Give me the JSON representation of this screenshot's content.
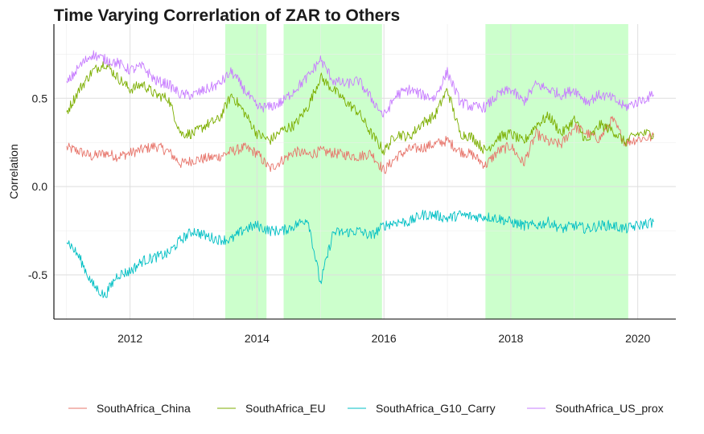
{
  "chart_data": {
    "type": "line",
    "title": "Time Varying Correrlation of ZAR to Others",
    "xlabel": "",
    "ylabel": "Correlation",
    "xlim": [
      2010.8,
      2020.6
    ],
    "ylim": [
      -0.75,
      0.92
    ],
    "x_ticks": [
      2012,
      2014,
      2016,
      2018,
      2020
    ],
    "x_tick_labels": [
      "2012",
      "2014",
      "2016",
      "2018",
      "2020"
    ],
    "y_ticks": [
      -0.5,
      0.0,
      0.5
    ],
    "y_tick_labels": [
      "-0.5",
      "0.0",
      "0.5"
    ],
    "grid": true,
    "legend_position": "bottom",
    "shaded_periods": [
      [
        2013.5,
        2014.15
      ],
      [
        2014.42,
        2015.97
      ],
      [
        2017.6,
        2019.85
      ]
    ],
    "shade_color": "#ccffcc",
    "series": [
      {
        "name": "SouthAfrica_China",
        "color": "#e7756b",
        "x": [
          2011.0,
          2011.2,
          2011.4,
          2011.6,
          2011.8,
          2012.0,
          2012.2,
          2012.4,
          2012.6,
          2012.8,
          2013.0,
          2013.2,
          2013.4,
          2013.6,
          2013.8,
          2014.0,
          2014.2,
          2014.4,
          2014.6,
          2014.8,
          2015.0,
          2015.2,
          2015.4,
          2015.6,
          2015.8,
          2016.0,
          2016.2,
          2016.4,
          2016.6,
          2016.8,
          2017.0,
          2017.2,
          2017.4,
          2017.6,
          2017.8,
          2018.0,
          2018.2,
          2018.4,
          2018.6,
          2018.8,
          2019.0,
          2019.2,
          2019.4,
          2019.6,
          2019.8,
          2020.0,
          2020.25
        ],
        "values": [
          0.22,
          0.2,
          0.17,
          0.19,
          0.17,
          0.19,
          0.21,
          0.23,
          0.2,
          0.13,
          0.15,
          0.16,
          0.17,
          0.2,
          0.22,
          0.19,
          0.1,
          0.15,
          0.2,
          0.18,
          0.2,
          0.19,
          0.18,
          0.17,
          0.19,
          0.09,
          0.17,
          0.21,
          0.22,
          0.24,
          0.26,
          0.2,
          0.18,
          0.12,
          0.2,
          0.23,
          0.13,
          0.3,
          0.25,
          0.24,
          0.34,
          0.3,
          0.27,
          0.38,
          0.25,
          0.27,
          0.28
        ]
      },
      {
        "name": "SouthAfrica_EU",
        "color": "#7cae00",
        "x": [
          2011.0,
          2011.2,
          2011.4,
          2011.6,
          2011.8,
          2012.0,
          2012.2,
          2012.4,
          2012.6,
          2012.8,
          2013.0,
          2013.2,
          2013.4,
          2013.6,
          2013.8,
          2014.0,
          2014.2,
          2014.4,
          2014.6,
          2014.8,
          2015.0,
          2015.2,
          2015.4,
          2015.6,
          2015.8,
          2016.0,
          2016.2,
          2016.4,
          2016.6,
          2016.8,
          2017.0,
          2017.2,
          2017.4,
          2017.6,
          2017.8,
          2018.0,
          2018.2,
          2018.4,
          2018.6,
          2018.8,
          2019.0,
          2019.2,
          2019.4,
          2019.6,
          2019.8,
          2020.0,
          2020.25
        ],
        "values": [
          0.42,
          0.55,
          0.65,
          0.7,
          0.62,
          0.55,
          0.58,
          0.52,
          0.5,
          0.3,
          0.3,
          0.35,
          0.38,
          0.52,
          0.42,
          0.3,
          0.26,
          0.32,
          0.35,
          0.45,
          0.62,
          0.55,
          0.48,
          0.42,
          0.3,
          0.2,
          0.3,
          0.28,
          0.36,
          0.4,
          0.55,
          0.3,
          0.28,
          0.2,
          0.28,
          0.3,
          0.25,
          0.35,
          0.4,
          0.3,
          0.38,
          0.25,
          0.35,
          0.32,
          0.25,
          0.3,
          0.3
        ]
      },
      {
        "name": "SouthAfrica_G10_Carry",
        "color": "#00bfc4",
        "x": [
          2011.0,
          2011.2,
          2011.4,
          2011.6,
          2011.8,
          2012.0,
          2012.2,
          2012.4,
          2012.6,
          2012.8,
          2013.0,
          2013.2,
          2013.4,
          2013.6,
          2013.8,
          2014.0,
          2014.2,
          2014.4,
          2014.6,
          2014.8,
          2015.0,
          2015.2,
          2015.4,
          2015.6,
          2015.8,
          2016.0,
          2016.2,
          2016.4,
          2016.6,
          2016.8,
          2017.0,
          2017.2,
          2017.4,
          2017.6,
          2017.8,
          2018.0,
          2018.2,
          2018.4,
          2018.6,
          2018.8,
          2019.0,
          2019.2,
          2019.4,
          2019.6,
          2019.8,
          2020.0,
          2020.25
        ],
        "values": [
          -0.3,
          -0.4,
          -0.55,
          -0.62,
          -0.5,
          -0.48,
          -0.42,
          -0.4,
          -0.38,
          -0.3,
          -0.25,
          -0.28,
          -0.3,
          -0.3,
          -0.24,
          -0.22,
          -0.25,
          -0.25,
          -0.22,
          -0.18,
          -0.55,
          -0.26,
          -0.26,
          -0.25,
          -0.28,
          -0.22,
          -0.2,
          -0.2,
          -0.16,
          -0.16,
          -0.18,
          -0.16,
          -0.17,
          -0.17,
          -0.18,
          -0.2,
          -0.22,
          -0.22,
          -0.2,
          -0.24,
          -0.22,
          -0.24,
          -0.22,
          -0.22,
          -0.24,
          -0.22,
          -0.2
        ]
      },
      {
        "name": "SouthAfrica_US_prox",
        "color": "#c77cff",
        "x": [
          2011.0,
          2011.2,
          2011.4,
          2011.6,
          2011.8,
          2012.0,
          2012.2,
          2012.4,
          2012.6,
          2012.8,
          2013.0,
          2013.2,
          2013.4,
          2013.6,
          2013.8,
          2014.0,
          2014.2,
          2014.4,
          2014.6,
          2014.8,
          2015.0,
          2015.2,
          2015.4,
          2015.6,
          2015.8,
          2016.0,
          2016.2,
          2016.4,
          2016.6,
          2016.8,
          2017.0,
          2017.2,
          2017.4,
          2017.6,
          2017.8,
          2018.0,
          2018.2,
          2018.4,
          2018.6,
          2018.8,
          2019.0,
          2019.2,
          2019.4,
          2019.6,
          2019.8,
          2020.0,
          2020.25
        ],
        "values": [
          0.58,
          0.68,
          0.75,
          0.72,
          0.7,
          0.66,
          0.68,
          0.6,
          0.58,
          0.52,
          0.52,
          0.55,
          0.58,
          0.65,
          0.55,
          0.45,
          0.45,
          0.48,
          0.55,
          0.62,
          0.72,
          0.6,
          0.58,
          0.6,
          0.5,
          0.4,
          0.52,
          0.55,
          0.52,
          0.5,
          0.65,
          0.48,
          0.45,
          0.45,
          0.52,
          0.55,
          0.48,
          0.58,
          0.55,
          0.52,
          0.55,
          0.48,
          0.52,
          0.5,
          0.45,
          0.48,
          0.52
        ]
      }
    ]
  }
}
